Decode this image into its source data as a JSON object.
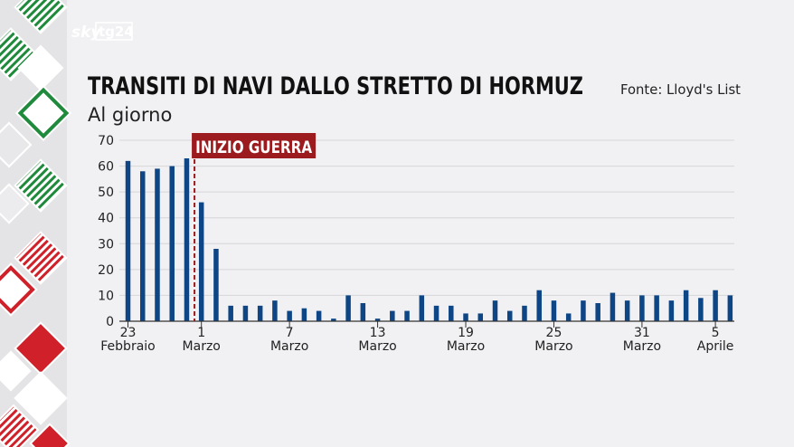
{
  "brand": {
    "sky": "sky",
    "tg24": "tg24"
  },
  "header": {
    "title": "TRANSITI DI NAVI DALLO STRETTO DI HORMUZ",
    "subtitle": "Al giorno",
    "source": "Fonte: Lloyd's List"
  },
  "colors": {
    "bar": "#0d4585",
    "marker": "#9b1b1f",
    "background": "#f1f1f3",
    "sidebar": "#e4e4e6",
    "stripe_green": "#1f8a3b",
    "stripe_red": "#d0202a"
  },
  "chart_data": {
    "type": "bar",
    "ylim": [
      0,
      70
    ],
    "y_ticks": [
      0,
      10,
      20,
      30,
      40,
      50,
      60,
      70
    ],
    "grid": true,
    "values": [
      62,
      58,
      59,
      60,
      63,
      46,
      28,
      6,
      6,
      6,
      8,
      4,
      5,
      4,
      1,
      10,
      7,
      1,
      4,
      4,
      10,
      6,
      6,
      3,
      3,
      8,
      4,
      6,
      12,
      8,
      3,
      8,
      7,
      11,
      8,
      10,
      10,
      8,
      12,
      9,
      12,
      10
    ],
    "x_ticks": [
      {
        "index": 0,
        "line1": "23",
        "line2": "Febbraio"
      },
      {
        "index": 5,
        "line1": "1",
        "line2": "Marzo"
      },
      {
        "index": 11,
        "line1": "7",
        "line2": "Marzo"
      },
      {
        "index": 17,
        "line1": "13",
        "line2": "Marzo"
      },
      {
        "index": 23,
        "line1": "19",
        "line2": "Marzo"
      },
      {
        "index": 29,
        "line1": "25",
        "line2": "Marzo"
      },
      {
        "index": 35,
        "line1": "31",
        "line2": "Marzo"
      },
      {
        "index": 40,
        "line1": "5",
        "line2": "Aprile"
      }
    ],
    "annotation": {
      "text": "INIZIO GUERRA",
      "between_index": 4.5
    }
  }
}
